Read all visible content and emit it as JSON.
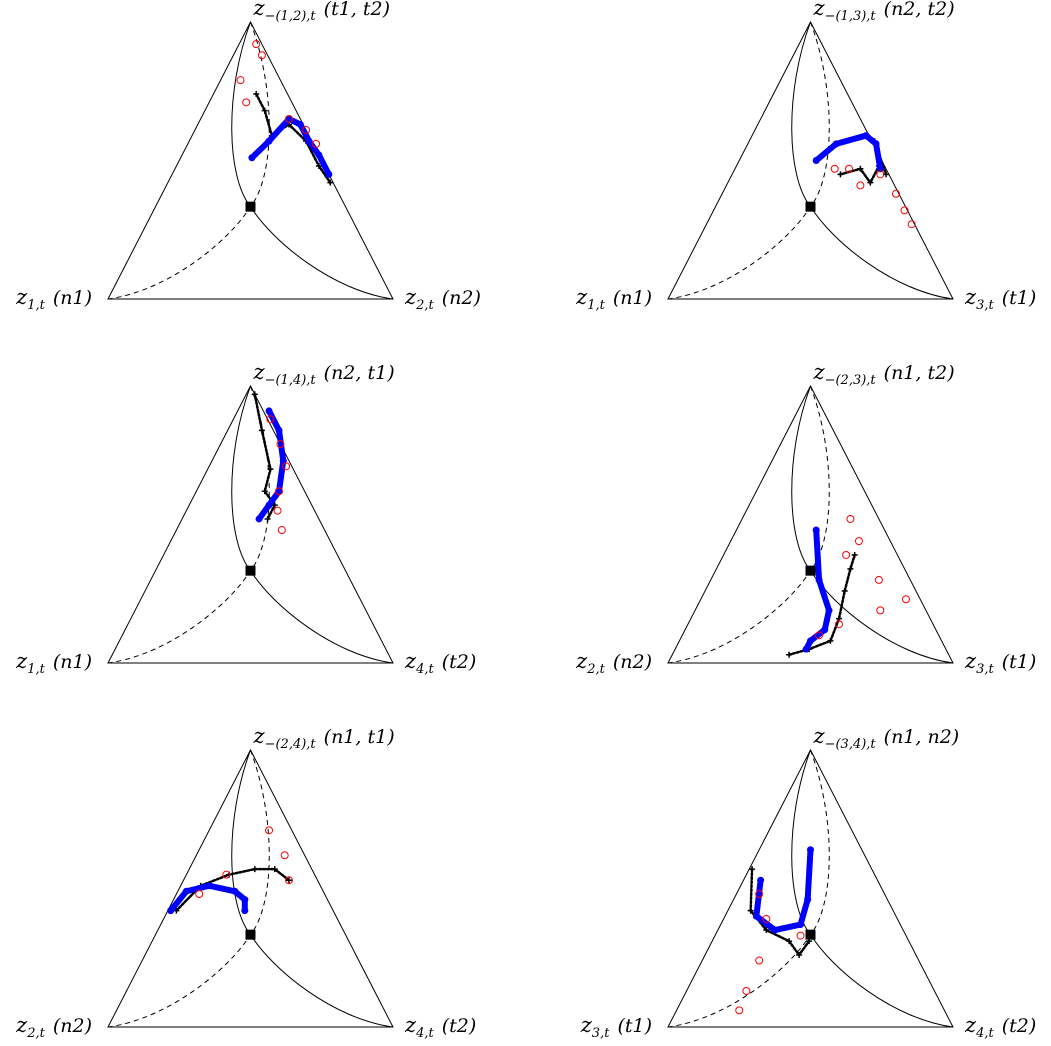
{
  "chart_data": [
    {
      "type": "ternary",
      "vertices": {
        "top": {
          "symbol": "z",
          "sub": "−(1,2),t",
          "tag": "(t1, t2)"
        },
        "left": {
          "symbol": "z",
          "sub": "1,t",
          "tag": "(n1)"
        },
        "right": {
          "symbol": "z",
          "sub": "2,t",
          "tag": "(n2)"
        }
      },
      "series": [
        {
          "color": "#000000",
          "marker": "plus",
          "top": [
            0.74,
            0.68,
            0.59,
            0.63,
            0.57,
            0.48,
            0.42
          ],
          "right": [
            0.15,
            0.21,
            0.28,
            0.32,
            0.41,
            0.5,
            0.57
          ]
        },
        {
          "color": "#0000ff",
          "marker": "circle",
          "top": [
            0.51,
            0.57,
            0.65,
            0.63,
            0.57,
            0.52,
            0.45
          ],
          "right": [
            0.25,
            0.28,
            0.31,
            0.36,
            0.42,
            0.48,
            0.55
          ]
        },
        {
          "color": "#ff0000",
          "marker": "circle-open",
          "top": [
            0.92,
            0.88,
            0.79,
            0.71,
            0.65,
            0.61,
            0.56
          ],
          "right": [
            0.06,
            0.1,
            0.07,
            0.13,
            0.31,
            0.39,
            0.45
          ]
        }
      ]
    },
    {
      "type": "ternary",
      "vertices": {
        "top": {
          "symbol": "z",
          "sub": "−(1,3),t",
          "tag": "(n2, t2)"
        },
        "left": {
          "symbol": "z",
          "sub": "1,t",
          "tag": "(n1)"
        },
        "right": {
          "symbol": "z",
          "sub": "3,t",
          "tag": "(t1)"
        }
      },
      "series": [
        {
          "color": "#000000",
          "marker": "plus",
          "top": [
            0.45,
            0.47,
            0.42,
            0.48,
            0.57,
            0.45
          ],
          "right": [
            0.38,
            0.44,
            0.5,
            0.5,
            0.44,
            0.54
          ]
        },
        {
          "color": "#0000ff",
          "marker": "circle",
          "top": [
            0.5,
            0.56,
            0.59,
            0.56,
            0.47
          ],
          "right": [
            0.27,
            0.31,
            0.4,
            0.45,
            0.51
          ]
        },
        {
          "color": "#ff0000",
          "marker": "circle-open",
          "top": [
            0.47,
            0.47,
            0.41,
            0.45,
            0.38,
            0.32,
            0.27
          ],
          "right": [
            0.35,
            0.4,
            0.47,
            0.52,
            0.61,
            0.67,
            0.72
          ]
        }
      ]
    },
    {
      "type": "ternary",
      "vertices": {
        "top": {
          "symbol": "z",
          "sub": "−(1,4),t",
          "tag": "(n2, t1)"
        },
        "left": {
          "symbol": "z",
          "sub": "1,t",
          "tag": "(n1)"
        },
        "right": {
          "symbol": "z",
          "sub": "4,t",
          "tag": "(t2)"
        }
      },
      "series": [
        {
          "color": "#000000",
          "marker": "plus",
          "top": [
            0.97,
            0.84,
            0.7,
            0.62,
            0.57,
            0.52
          ],
          "right": [
            0.03,
            0.12,
            0.22,
            0.24,
            0.3,
            0.3
          ]
        },
        {
          "color": "#0000ff",
          "marker": "circle",
          "top": [
            0.52,
            0.57,
            0.62,
            0.73,
            0.84,
            0.91
          ],
          "right": [
            0.27,
            0.28,
            0.29,
            0.25,
            0.18,
            0.11
          ]
        },
        {
          "color": "#ff0000",
          "marker": "circle-open",
          "top": [
            0.88,
            0.79,
            0.71,
            0.62,
            0.55,
            0.48
          ],
          "right": [
            0.13,
            0.21,
            0.27,
            0.29,
            0.32,
            0.37
          ]
        }
      ]
    },
    {
      "type": "ternary",
      "vertices": {
        "top": {
          "symbol": "z",
          "sub": "−(2,3),t",
          "tag": "(n1, t2)"
        },
        "left": {
          "symbol": "z",
          "sub": "2,t",
          "tag": "(n2)"
        },
        "right": {
          "symbol": "z",
          "sub": "3,t",
          "tag": "(t1)"
        }
      },
      "series": [
        {
          "color": "#000000",
          "marker": "plus",
          "top": [
            0.03,
            0.05,
            0.08,
            0.16,
            0.26,
            0.34,
            0.39
          ],
          "right": [
            0.41,
            0.47,
            0.53,
            0.52,
            0.49,
            0.47,
            0.46
          ]
        },
        {
          "color": "#0000ff",
          "marker": "circle",
          "top": [
            0.48,
            0.3,
            0.19,
            0.12,
            0.08,
            0.05
          ],
          "right": [
            0.28,
            0.38,
            0.47,
            0.49,
            0.46,
            0.46
          ]
        },
        {
          "color": "#ff0000",
          "marker": "circle-open",
          "top": [
            0.1,
            0.14,
            0.39,
            0.52,
            0.44,
            0.3,
            0.19,
            0.23
          ],
          "right": [
            0.48,
            0.53,
            0.43,
            0.38,
            0.45,
            0.59,
            0.65,
            0.72
          ]
        }
      ]
    },
    {
      "type": "ternary",
      "vertices": {
        "top": {
          "symbol": "z",
          "sub": "−(2,4),t",
          "tag": "(n1, t1)"
        },
        "left": {
          "symbol": "z",
          "sub": "2,t",
          "tag": "(n2)"
        },
        "right": {
          "symbol": "z",
          "sub": "4,t",
          "tag": "(t2)"
        }
      },
      "series": [
        {
          "color": "#000000",
          "marker": "plus",
          "top": [
            0.42,
            0.51,
            0.55,
            0.57,
            0.57,
            0.53
          ],
          "right": [
            0.03,
            0.07,
            0.15,
            0.23,
            0.3,
            0.37
          ]
        },
        {
          "color": "#0000ff",
          "marker": "circle",
          "top": [
            0.42,
            0.49,
            0.51,
            0.49,
            0.46,
            0.42
          ],
          "right": [
            0.01,
            0.03,
            0.1,
            0.2,
            0.25,
            0.27
          ]
        },
        {
          "color": "#ff0000",
          "marker": "circle-open",
          "top": [
            0.48,
            0.55,
            0.71,
            0.62,
            0.53
          ],
          "right": [
            0.08,
            0.14,
            0.21,
            0.31,
            0.37
          ]
        }
      ]
    },
    {
      "type": "ternary",
      "vertices": {
        "top": {
          "symbol": "z",
          "sub": "−(3,4),t",
          "tag": "(n1, n2)"
        },
        "left": {
          "symbol": "z",
          "sub": "3,t",
          "tag": "(t1)"
        },
        "right": {
          "symbol": "z",
          "sub": "4,t",
          "tag": "(t2)"
        }
      },
      "series": [
        {
          "color": "#000000",
          "marker": "plus",
          "top": [
            0.57,
            0.42,
            0.35,
            0.31,
            0.26,
            0.31
          ],
          "right": [
            0.01,
            0.08,
            0.17,
            0.27,
            0.33,
            0.34
          ]
        },
        {
          "color": "#0000ff",
          "marker": "circle",
          "top": [
            0.53,
            0.4,
            0.35,
            0.37,
            0.46,
            0.64
          ],
          "right": [
            0.06,
            0.11,
            0.2,
            0.28,
            0.26,
            0.18
          ]
        },
        {
          "color": "#ff0000",
          "marker": "circle-open",
          "top": [
            0.48,
            0.39,
            0.33,
            0.24,
            0.13,
            0.06
          ],
          "right": [
            0.08,
            0.15,
            0.3,
            0.2,
            0.21,
            0.22
          ]
        }
      ]
    }
  ]
}
